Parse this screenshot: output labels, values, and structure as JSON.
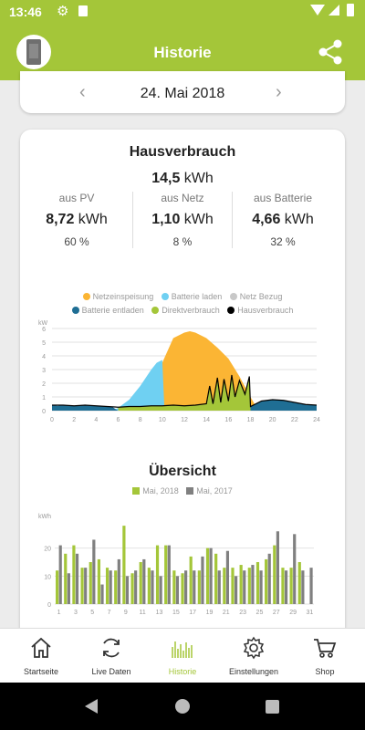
{
  "status_bar": {
    "time": "13:46"
  },
  "app_bar": {
    "title": "Historie"
  },
  "date_nav": {
    "date": "24. Mai 2018",
    "prev": "‹",
    "next": "›"
  },
  "hausverbrauch": {
    "title": "Hausverbrauch",
    "total_value": "14,5",
    "total_unit": "kWh",
    "sources": [
      {
        "label": "aus PV",
        "value": "8,72",
        "unit": "kWh",
        "percent": "60 %"
      },
      {
        "label": "aus Netz",
        "value": "1,10",
        "unit": "kWh",
        "percent": "8 %"
      },
      {
        "label": "aus Batterie",
        "value": "4,66",
        "unit": "kWh",
        "percent": "32 %"
      }
    ]
  },
  "chart_data": [
    {
      "type": "area",
      "title": "",
      "xlabel": "",
      "ylabel": "kW",
      "xlim": [
        0,
        24
      ],
      "ylim": [
        0,
        6
      ],
      "xticks": [
        0,
        2,
        4,
        6,
        8,
        10,
        12,
        14,
        16,
        18,
        20,
        22,
        24
      ],
      "yticks": [
        0,
        1,
        2,
        3,
        4,
        5,
        6
      ],
      "grid": true,
      "legend_position": "top",
      "legend": [
        {
          "name": "Netzeinspeisung",
          "color": "#fbb534"
        },
        {
          "name": "Batterie laden",
          "color": "#6fd0f2"
        },
        {
          "name": "Netz Bezug",
          "color": "#c8c8c8"
        },
        {
          "name": "Batterie entladen",
          "color": "#1f6e94"
        },
        {
          "name": "Direktverbrauch",
          "color": "#a4c639"
        },
        {
          "name": "Hausverbrauch",
          "color": "#000000"
        }
      ],
      "series": [
        {
          "name": "Netzeinspeisung",
          "x": [
            9.5,
            10,
            11,
            12,
            12.5,
            13,
            14,
            15,
            16,
            17,
            18,
            18.5,
            19
          ],
          "y": [
            0,
            3.5,
            5.3,
            5.7,
            5.8,
            5.7,
            5.3,
            4.6,
            3.8,
            2.5,
            1.0,
            0.3,
            0
          ]
        },
        {
          "name": "Batterie laden",
          "x": [
            5.5,
            6,
            7,
            8,
            9,
            9.5,
            10,
            10.2
          ],
          "y": [
            0,
            0.2,
            0.8,
            1.8,
            3.0,
            3.5,
            3.7,
            0
          ]
        },
        {
          "name": "Batterie entladen",
          "x": [
            0,
            0.5,
            1,
            2,
            3,
            4,
            5,
            5.5,
            6,
            18,
            19,
            20,
            21,
            22,
            23,
            24
          ],
          "y": [
            0.4,
            0.35,
            0.4,
            0.35,
            0.4,
            0.35,
            0.3,
            0.25,
            0,
            0.3,
            0.7,
            0.8,
            0.75,
            0.6,
            0.45,
            0.4
          ]
        },
        {
          "name": "Direktverbrauch",
          "x": [
            6,
            7,
            8,
            9,
            10,
            11,
            12,
            13,
            14,
            14.3,
            14.6,
            15,
            15.3,
            15.6,
            16,
            16.3,
            16.6,
            17,
            17.5,
            17.9,
            18
          ],
          "y": [
            0.25,
            0.3,
            0.3,
            0.35,
            0.35,
            0.4,
            0.35,
            0.4,
            0.5,
            1.8,
            0.5,
            2.4,
            0.6,
            2.3,
            0.7,
            2.6,
            1.0,
            2.2,
            1.2,
            2.5,
            0.3
          ]
        },
        {
          "name": "Hausverbrauch",
          "x": [
            0,
            1,
            2,
            3,
            4,
            5,
            6,
            7,
            8,
            9,
            10,
            11,
            12,
            13,
            14,
            14.3,
            14.6,
            15,
            15.3,
            15.6,
            16,
            16.3,
            16.6,
            17,
            17.5,
            17.9,
            18,
            19,
            20,
            21,
            22,
            23,
            24
          ],
          "y": [
            0.4,
            0.4,
            0.35,
            0.4,
            0.35,
            0.3,
            0.25,
            0.3,
            0.3,
            0.35,
            0.35,
            0.4,
            0.35,
            0.4,
            0.5,
            1.8,
            0.5,
            2.4,
            0.6,
            2.3,
            0.7,
            2.6,
            1.0,
            2.2,
            1.2,
            2.5,
            0.3,
            0.7,
            0.8,
            0.75,
            0.6,
            0.45,
            0.4
          ]
        }
      ]
    },
    {
      "type": "bar",
      "title": "Übersicht",
      "ylabel": "kWh",
      "ylim": [
        0,
        30
      ],
      "yticks": [
        0,
        10,
        20
      ],
      "xtick_labels": [
        "1",
        "3",
        "5",
        "7",
        "9",
        "11",
        "13",
        "15",
        "17",
        "19",
        "21",
        "23",
        "25",
        "27",
        "29",
        "31"
      ],
      "categories": [
        "1",
        "2",
        "3",
        "4",
        "5",
        "6",
        "7",
        "8",
        "9",
        "10",
        "11",
        "12",
        "13",
        "14",
        "15",
        "16",
        "17",
        "18",
        "19",
        "20",
        "21",
        "22",
        "23",
        "24",
        "25",
        "26",
        "27",
        "28",
        "29",
        "30",
        "31"
      ],
      "grid": true,
      "legend_position": "top",
      "series": [
        {
          "name": "Mai, 2018",
          "color": "#a4c639",
          "values": [
            12,
            18,
            21,
            13,
            15,
            16,
            13,
            12,
            28,
            11,
            15,
            13,
            21,
            21,
            12,
            11,
            17,
            12,
            20,
            18,
            13,
            13,
            14,
            13,
            15,
            16,
            21,
            13,
            13,
            15,
            0
          ]
        },
        {
          "name": "Mai, 2017",
          "color": "#808080",
          "values": [
            21,
            11,
            18,
            13,
            23,
            7,
            12,
            16,
            10,
            12,
            16,
            12,
            10,
            21,
            10,
            12,
            12,
            17,
            20,
            12,
            19,
            10,
            12,
            14,
            12,
            18,
            26,
            12,
            25,
            12,
            13
          ]
        }
      ]
    }
  ],
  "bottom_nav": [
    {
      "label": "Startseite",
      "icon": "home-icon"
    },
    {
      "label": "Live Daten",
      "icon": "refresh-icon"
    },
    {
      "label": "Historie",
      "icon": "history-icon",
      "active": true
    },
    {
      "label": "Einstellungen",
      "icon": "gear-icon"
    },
    {
      "label": "Shop",
      "icon": "cart-icon"
    }
  ],
  "colors": {
    "accent": "#a4c639",
    "text": "#222222",
    "muted": "#777777"
  }
}
